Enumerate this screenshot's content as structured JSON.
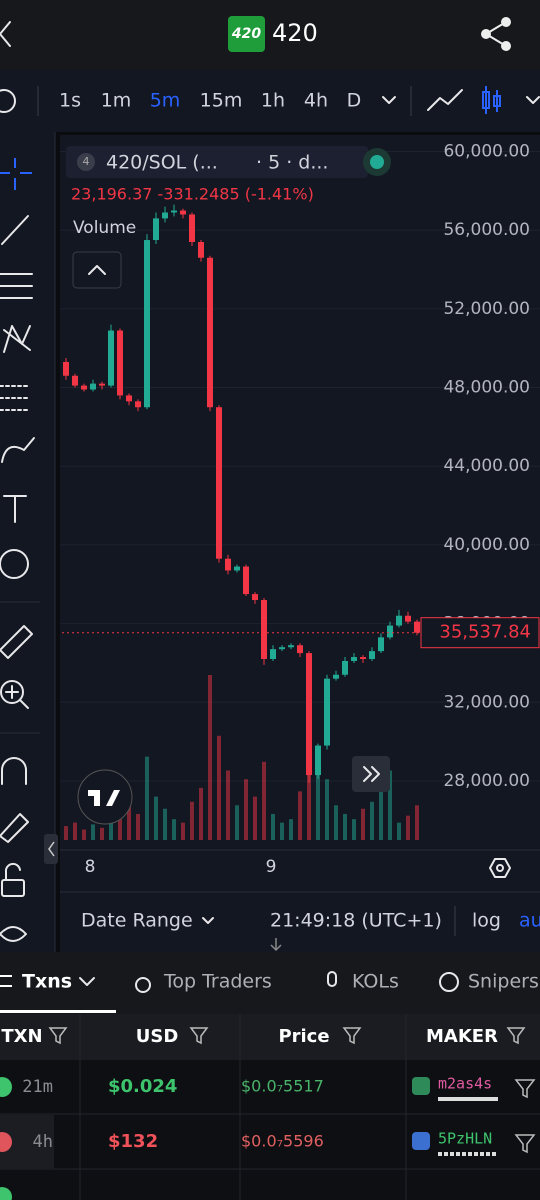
{
  "header": {
    "logo": "420",
    "title": "420"
  },
  "toolbar": {
    "timeframes": [
      "1s",
      "1m",
      "5m",
      "15m",
      "1h",
      "4h",
      "D"
    ],
    "active_timeframe_index": 2
  },
  "chart_data": {
    "type": "candlestick",
    "legend_badge": "4",
    "title": "420/SOL (...",
    "subtitle": "· 5 · d...",
    "ohlc_text": "23,196.37 -331.2485 (-1.41%)",
    "volume_label": "Volume",
    "up_color": "#22ab94",
    "down_color": "#f23645",
    "open": [
      49300,
      48600,
      48100,
      47900,
      48200,
      48100,
      50900,
      47600,
      47300,
      47000,
      55500,
      56600,
      56900,
      57000,
      56800,
      55400,
      54600,
      47000,
      39300,
      38700,
      38900,
      37500,
      37200,
      34200,
      34700,
      34800,
      34900,
      34500,
      28300,
      29800,
      33200,
      33400,
      34100,
      34300,
      34200,
      34600,
      35300,
      35900,
      36400,
      36100
    ],
    "high": [
      49500,
      48700,
      48200,
      48400,
      48300,
      51200,
      51000,
      47700,
      47400,
      55800,
      56900,
      57200,
      57300,
      57100,
      56900,
      55500,
      54700,
      47100,
      39500,
      39000,
      39000,
      37600,
      37300,
      34900,
      34900,
      35000,
      35000,
      34600,
      29900,
      33400,
      33600,
      34300,
      34500,
      34400,
      34800,
      35500,
      36100,
      36700,
      36600,
      36200
    ],
    "low": [
      48400,
      48000,
      47800,
      47800,
      47900,
      48000,
      47400,
      47100,
      46800,
      46900,
      55300,
      56400,
      56700,
      56600,
      55200,
      54400,
      46800,
      39100,
      38500,
      38600,
      37400,
      37000,
      33900,
      34100,
      34600,
      34700,
      34300,
      27900,
      28100,
      29600,
      33100,
      33300,
      34000,
      34000,
      34100,
      34500,
      35200,
      35800,
      36000,
      35400
    ],
    "close": [
      48600,
      48100,
      47900,
      48200,
      48100,
      50900,
      47600,
      47300,
      47000,
      55500,
      56600,
      56900,
      57000,
      56800,
      55400,
      54600,
      47000,
      39300,
      38700,
      38900,
      37500,
      37200,
      34200,
      34700,
      34800,
      34900,
      34500,
      28300,
      29800,
      33200,
      33400,
      34100,
      34300,
      34200,
      34600,
      35300,
      35900,
      36400,
      36100,
      35537.84
    ],
    "volume": [
      8,
      10,
      6,
      9,
      7,
      30,
      12,
      20,
      15,
      48,
      25,
      18,
      12,
      10,
      22,
      30,
      95,
      60,
      40,
      20,
      35,
      25,
      45,
      15,
      10,
      12,
      28,
      70,
      50,
      35,
      20,
      15,
      12,
      18,
      22,
      30,
      40,
      10,
      14,
      20
    ],
    "ylim": [
      24490,
      60840
    ],
    "yticks": [
      {
        "value": 28000,
        "label": "28,000.00"
      },
      {
        "value": 32000,
        "label": "32,000.00"
      },
      {
        "value": 36000,
        "label": "36,000.00"
      },
      {
        "value": 40000,
        "label": "40,000.00"
      },
      {
        "value": 44000,
        "label": "44,000.00"
      },
      {
        "value": 48000,
        "label": "48,000.00"
      },
      {
        "value": 52000,
        "label": "52,000.00"
      },
      {
        "value": 56000,
        "label": "56,000.00"
      },
      {
        "value": 60000,
        "label": "60,000.00"
      }
    ],
    "grid": true,
    "last_price": {
      "value": 35537.84,
      "label": "35,537.84"
    },
    "x_tick_labels": [
      "8",
      "9"
    ]
  },
  "chart_footer": {
    "date_range": "Date Range",
    "time": "21:49:18 (UTC+1)",
    "log": "log",
    "auto": "au"
  },
  "tabs": [
    "Txns",
    "Top Traders",
    "KOLs",
    "Snipers"
  ],
  "table": {
    "columns": [
      "TXN",
      "USD",
      "Price",
      "MAKER"
    ],
    "rows": [
      {
        "side": "buy",
        "age": "21m",
        "usd": "$0.024",
        "price": "$0.0₇5517",
        "maker": "m2as4s"
      },
      {
        "side": "sell",
        "age": "4h",
        "usd": "$132",
        "price": "$0.0₇5596",
        "maker": "5PzHLN"
      }
    ]
  }
}
